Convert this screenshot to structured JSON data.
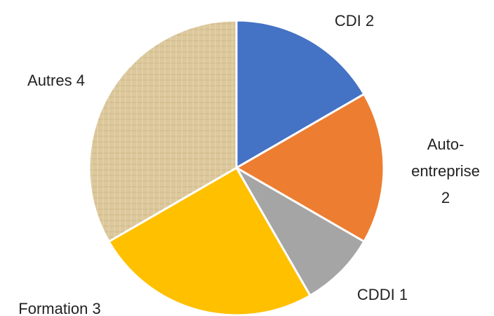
{
  "chart_data": {
    "type": "pie",
    "categories": [
      "CDI",
      "Auto-entreprise",
      "CDDI",
      "Formation",
      "Autres"
    ],
    "values": [
      2,
      2,
      1,
      3,
      4
    ],
    "colors": [
      "#4472c4",
      "#ed7d31",
      "#a5a5a5",
      "#ffc000",
      "#dcc89c"
    ]
  }
}
